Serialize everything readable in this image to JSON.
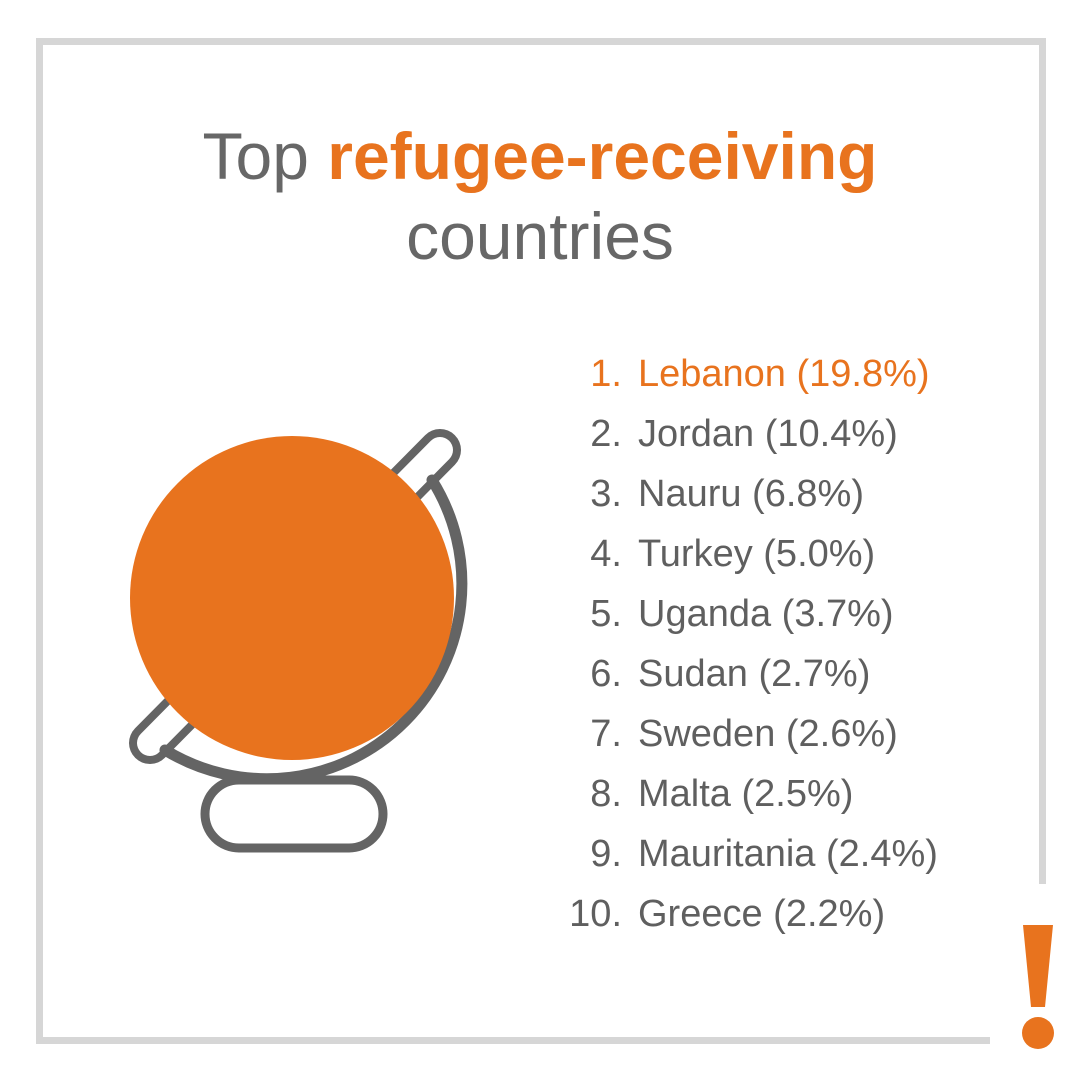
{
  "title": {
    "prefix": "Top",
    "highlight": "refugee-receiving",
    "line2": "countries"
  },
  "icons": {
    "globe": "globe-icon",
    "exclamation": "exclamation-mark-icon"
  },
  "colors": {
    "accent": "#e8731e",
    "text": "#5f5f5f",
    "border": "#d6d6d6"
  },
  "countries": [
    {
      "rank": "1.",
      "label": "Lebanon (19.8%)"
    },
    {
      "rank": "2.",
      "label": "Jordan (10.4%)"
    },
    {
      "rank": "3.",
      "label": "Nauru (6.8%)"
    },
    {
      "rank": "4.",
      "label": "Turkey (5.0%)"
    },
    {
      "rank": "5.",
      "label": "Uganda (3.7%)"
    },
    {
      "rank": "6.",
      "label": "Sudan (2.7%)"
    },
    {
      "rank": "7.",
      "label": "Sweden (2.6%)"
    },
    {
      "rank": "8.",
      "label": "Malta (2.5%)"
    },
    {
      "rank": "9.",
      "label": "Mauritania (2.4%)"
    },
    {
      "rank": "10.",
      "label": "Greece (2.2%)"
    }
  ]
}
